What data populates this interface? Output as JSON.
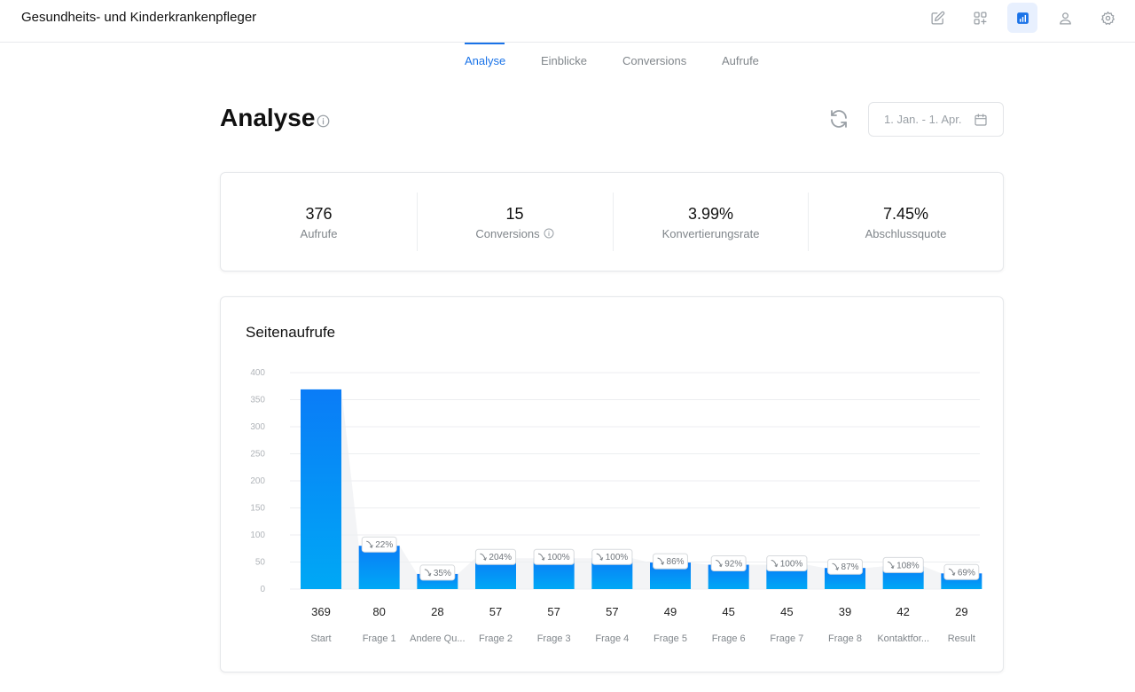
{
  "app": {
    "title": "Gesundheits- und Kinderkrankenpfleger"
  },
  "top_icons": [
    {
      "name": "edit-icon",
      "active": false
    },
    {
      "name": "apps-add-icon",
      "active": false
    },
    {
      "name": "analytics-icon",
      "active": true
    },
    {
      "name": "user-icon",
      "active": false
    },
    {
      "name": "settings-icon",
      "active": false
    }
  ],
  "tabs": [
    {
      "label": "Analyse",
      "active": true
    },
    {
      "label": "Einblicke",
      "active": false
    },
    {
      "label": "Conversions",
      "active": false
    },
    {
      "label": "Aufrufe",
      "active": false
    }
  ],
  "page": {
    "title": "Analyse"
  },
  "date_range": {
    "label": "1. Jan. - 1. Apr."
  },
  "stats": [
    {
      "value": "376",
      "label": "Aufrufe"
    },
    {
      "value": "15",
      "label": "Conversions"
    },
    {
      "value": "3.99%",
      "label": "Konvertierungsrate"
    },
    {
      "value": "7.45%",
      "label": "Abschlussquote"
    }
  ],
  "chart_card": {
    "title": "Seitenaufrufe"
  },
  "colors": {
    "accent": "#1a73e8",
    "bar_top": "#0a7cf7",
    "bar_bottom": "#00a8f5"
  },
  "chart_data": {
    "type": "bar",
    "title": "Seitenaufrufe",
    "categories": [
      "Start",
      "Frage 1",
      "Andere Qu...",
      "Frage 2",
      "Frage 3",
      "Frage 4",
      "Frage 5",
      "Frage 6",
      "Frage 7",
      "Frage 8",
      "Kontaktfor...",
      "Result"
    ],
    "values": [
      369,
      80,
      28,
      57,
      57,
      57,
      49,
      45,
      45,
      39,
      42,
      29
    ],
    "value_labels": [
      "369",
      "80",
      "28",
      "57",
      "57",
      "57",
      "49",
      "45",
      "45",
      "39",
      "42",
      "29"
    ],
    "change_labels": [
      "",
      "22%",
      "35%",
      "204%",
      "100%",
      "100%",
      "86%",
      "92%",
      "100%",
      "87%",
      "108%",
      "69%"
    ],
    "y_ticks": [
      0,
      50,
      100,
      150,
      200,
      250,
      300,
      350,
      400
    ],
    "ylim": [
      0,
      400
    ],
    "grid": true
  }
}
